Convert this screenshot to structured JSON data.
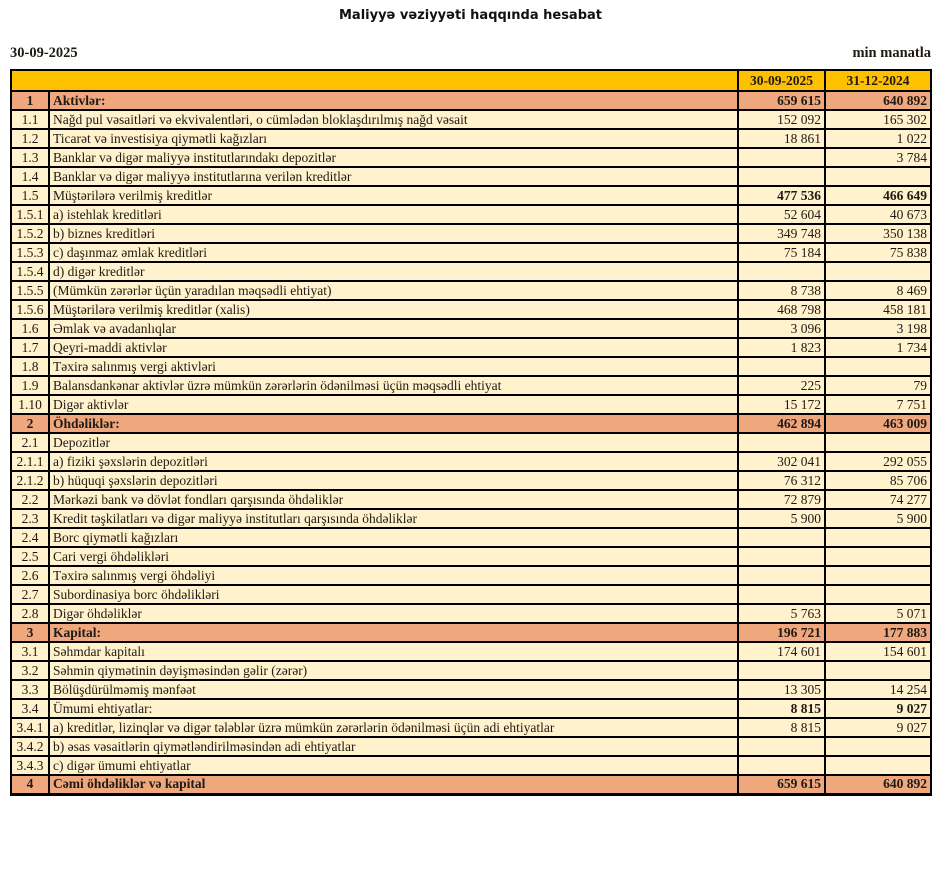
{
  "page": {
    "title": "Maliyyə vəziyyəti haqqında hesabat",
    "report_date": "30-09-2025",
    "unit_note": "min manatla"
  },
  "colors": {
    "header_bg": "#FFC000",
    "section_bg": "#EFA77E",
    "row_bg": "#FFF2CC"
  },
  "table": {
    "header": {
      "col_current": "30-09-2025",
      "col_previous": "31-12-2024"
    },
    "rows": [
      {
        "num": "1",
        "label": "Aktivlər:",
        "current": "659 615",
        "previous": "640 892",
        "style": "section"
      },
      {
        "num": "1.1",
        "label": "Nağd pul vəsaitləri və ekvivalentləri, o cümlədən bloklaşdırılmış nağd vəsait",
        "current": "152 092",
        "previous": "165 302",
        "style": "normal"
      },
      {
        "num": "1.2",
        "label": "Ticarət və investisiya qiymətli kağızları",
        "current": "18 861",
        "previous": "1 022",
        "style": "normal"
      },
      {
        "num": "1.3",
        "label": "Banklar və digər maliyyə institutlarındakı depozitlər",
        "current": "",
        "previous": "3 784",
        "style": "normal"
      },
      {
        "num": "1.4",
        "label": "Banklar və digər maliyyə institutlarına verilən kreditlər",
        "current": "",
        "previous": "",
        "style": "normal"
      },
      {
        "num": "1.5",
        "label": "Müştərilərə verilmiş kreditlər",
        "current": "477 536",
        "previous": "466 649",
        "style": "values-bold"
      },
      {
        "num": "1.5.1",
        "label": "a) istehlak kreditləri",
        "current": "52 604",
        "previous": "40 673",
        "style": "normal"
      },
      {
        "num": "1.5.2",
        "label": "b) biznes kreditləri",
        "current": "349 748",
        "previous": "350 138",
        "style": "normal"
      },
      {
        "num": "1.5.3",
        "label": "c) daşınmaz əmlak kreditləri",
        "current": "75 184",
        "previous": "75 838",
        "style": "normal"
      },
      {
        "num": "1.5.4",
        "label": "d) digər kreditlər",
        "current": "",
        "previous": "",
        "style": "normal"
      },
      {
        "num": "1.5.5",
        "label": "(Mümkün zərərlər üçün yaradılan məqsədli ehtiyat)",
        "current": "8 738",
        "previous": "8 469",
        "style": "normal"
      },
      {
        "num": "1.5.6",
        "label": "Müştərilərə verilmiş kreditlər (xalis)",
        "current": "468 798",
        "previous": "458 181",
        "style": "normal"
      },
      {
        "num": "1.6",
        "label": "Əmlak və avadanlıqlar",
        "current": "3 096",
        "previous": "3 198",
        "style": "normal"
      },
      {
        "num": "1.7",
        "label": "Qeyri-maddi aktivlər",
        "current": "1 823",
        "previous": "1 734",
        "style": "normal"
      },
      {
        "num": "1.8",
        "label": "Təxirə salınmış vergi aktivləri",
        "current": "",
        "previous": "",
        "style": "normal"
      },
      {
        "num": "1.9",
        "label": "Balansdankənar aktivlər üzrə mümkün zərərlərin ödənilməsi üçün məqsədli ehtiyat",
        "current": "225",
        "previous": "79",
        "style": "normal"
      },
      {
        "num": "1.10",
        "label": "Digər aktivlər",
        "current": "15 172",
        "previous": "7 751",
        "style": "normal"
      },
      {
        "num": "2",
        "label": "Öhdəliklər:",
        "current": "462 894",
        "previous": "463 009",
        "style": "section"
      },
      {
        "num": "2.1",
        "label": "Depozitlər",
        "current": "",
        "previous": "",
        "style": "normal"
      },
      {
        "num": "2.1.1",
        "label": "a) fiziki şəxslərin depozitləri",
        "current": "302 041",
        "previous": "292 055",
        "style": "normal"
      },
      {
        "num": "2.1.2",
        "label": "b) hüquqi şəxslərin depozitləri",
        "current": "76 312",
        "previous": "85 706",
        "style": "normal"
      },
      {
        "num": "2.2",
        "label": "Mərkəzi bank və dövlət fondları qarşısında öhdəliklər",
        "current": "72 879",
        "previous": "74 277",
        "style": "normal"
      },
      {
        "num": "2.3",
        "label": "Kredit təşkilatları və digər maliyyə institutları qarşısında öhdəliklər",
        "current": "5 900",
        "previous": "5 900",
        "style": "normal"
      },
      {
        "num": "2.4",
        "label": "Borc qiymətli kağızları",
        "current": "",
        "previous": "",
        "style": "normal"
      },
      {
        "num": "2.5",
        "label": "Cari vergi öhdəlikləri",
        "current": "",
        "previous": "",
        "style": "normal"
      },
      {
        "num": "2.6",
        "label": "Təxirə salınmış vergi öhdəliyi",
        "current": "",
        "previous": "",
        "style": "normal"
      },
      {
        "num": "2.7",
        "label": "Subordinasiya borc öhdəlikləri",
        "current": "",
        "previous": "",
        "style": "normal"
      },
      {
        "num": "2.8",
        "label": "Digər öhdəliklər",
        "current": "5 763",
        "previous": "5 071",
        "style": "normal"
      },
      {
        "num": "3",
        "label": "Kapital:",
        "current": "196 721",
        "previous": "177 883",
        "style": "section"
      },
      {
        "num": "3.1",
        "label": "Səhmdar kapitalı",
        "current": "174 601",
        "previous": "154 601",
        "style": "normal"
      },
      {
        "num": "3.2",
        "label": "Səhmin qiymətinin dəyişməsindən gəlir (zərər)",
        "current": "",
        "previous": "",
        "style": "normal"
      },
      {
        "num": "3.3",
        "label": "Bölüşdürülməmiş mənfəət",
        "current": "13 305",
        "previous": "14 254",
        "style": "normal"
      },
      {
        "num": "3.4",
        "label": "Ümumi ehtiyatlar:",
        "current": "8 815",
        "previous": "9 027",
        "style": "values-bold"
      },
      {
        "num": "3.4.1",
        "label": "a) kreditlər, lizinqlər və digər tələblər üzrə mümkün zərərlərin ödənilməsi üçün adi ehtiyatlar",
        "current": "8 815",
        "previous": "9 027",
        "style": "normal"
      },
      {
        "num": "3.4.2",
        "label": "b) əsas vəsaitlərin qiymətləndirilməsindən adi ehtiyatlar",
        "current": "",
        "previous": "",
        "style": "normal"
      },
      {
        "num": "3.4.3",
        "label": "c) digər ümumi ehtiyatlar",
        "current": "",
        "previous": "",
        "style": "normal"
      },
      {
        "num": "4",
        "label": "Cəmi öhdəliklər və kapital",
        "current": "659 615",
        "previous": "640 892",
        "style": "section"
      }
    ]
  }
}
